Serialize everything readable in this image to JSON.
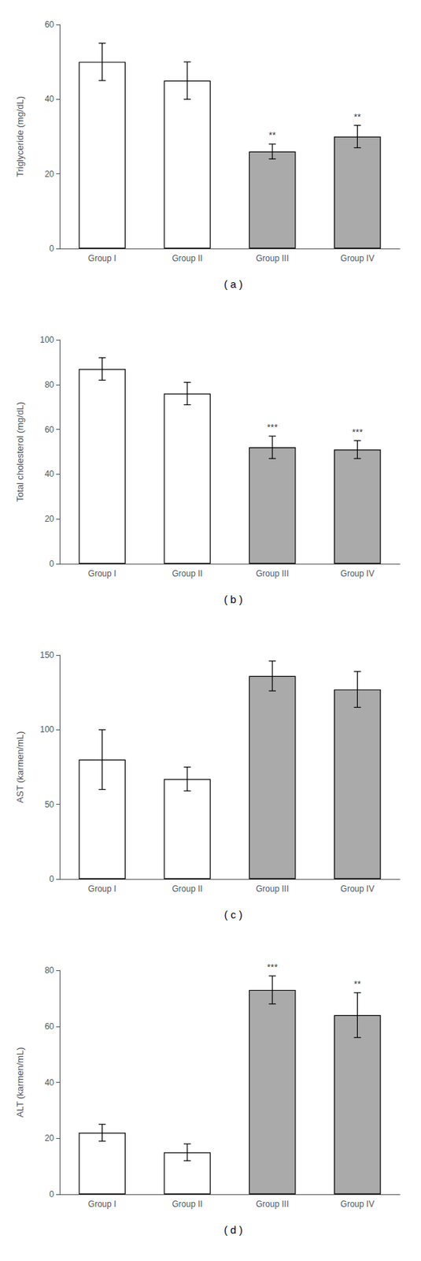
{
  "chart_data": [
    {
      "type": "bar",
      "title": "( a )",
      "ylabel": "Triglyceride (mg/dL)",
      "categories": [
        "Group I",
        "Group II",
        "Group III",
        "Group IV"
      ],
      "values": [
        50,
        45,
        26,
        30
      ],
      "errors": [
        5,
        5,
        2,
        3
      ],
      "colors": [
        "#ffffff",
        "#ffffff",
        "#aaaaaa",
        "#aaaaaa"
      ],
      "annotations": [
        {
          "category": "Group III",
          "text": "**"
        },
        {
          "category": "Group IV",
          "text": "**"
        }
      ],
      "ylim": [
        0,
        60
      ],
      "yticks": [
        0,
        20,
        40,
        60
      ],
      "grid": false
    },
    {
      "type": "bar",
      "title": "( b )",
      "ylabel": "Total cholesterol (mg/dL)",
      "categories": [
        "Group I",
        "Group II",
        "Group III",
        "Group IV"
      ],
      "values": [
        87,
        76,
        52,
        51
      ],
      "errors": [
        5,
        5,
        5,
        4
      ],
      "colors": [
        "#ffffff",
        "#ffffff",
        "#aaaaaa",
        "#aaaaaa"
      ],
      "annotations": [
        {
          "category": "Group III",
          "text": "***"
        },
        {
          "category": "Group IV",
          "text": "***"
        }
      ],
      "ylim": [
        0,
        100
      ],
      "yticks": [
        0,
        20,
        40,
        60,
        80,
        100
      ],
      "grid": false
    },
    {
      "type": "bar",
      "title": "( c )",
      "ylabel": "AST (karmen/mL)",
      "categories": [
        "Group I",
        "Group II",
        "Group III",
        "Group IV"
      ],
      "values": [
        80,
        67,
        136,
        127
      ],
      "errors": [
        20,
        8,
        10,
        12
      ],
      "colors": [
        "#ffffff",
        "#ffffff",
        "#aaaaaa",
        "#aaaaaa"
      ],
      "annotations": [],
      "ylim": [
        0,
        150
      ],
      "yticks": [
        0,
        50,
        100,
        150
      ],
      "grid": false
    },
    {
      "type": "bar",
      "title": "( d )",
      "ylabel": "ALT (karmen/mL)",
      "categories": [
        "Group I",
        "Group II",
        "Group III",
        "Group IV"
      ],
      "values": [
        22,
        15,
        73,
        64
      ],
      "errors": [
        3,
        3,
        5,
        8
      ],
      "colors": [
        "#ffffff",
        "#ffffff",
        "#aaaaaa",
        "#aaaaaa"
      ],
      "annotations": [
        {
          "category": "Group III",
          "text": "***"
        },
        {
          "category": "Group IV",
          "text": "**"
        }
      ],
      "ylim": [
        0,
        80
      ],
      "yticks": [
        0,
        20,
        40,
        60,
        80
      ],
      "grid": false
    }
  ]
}
